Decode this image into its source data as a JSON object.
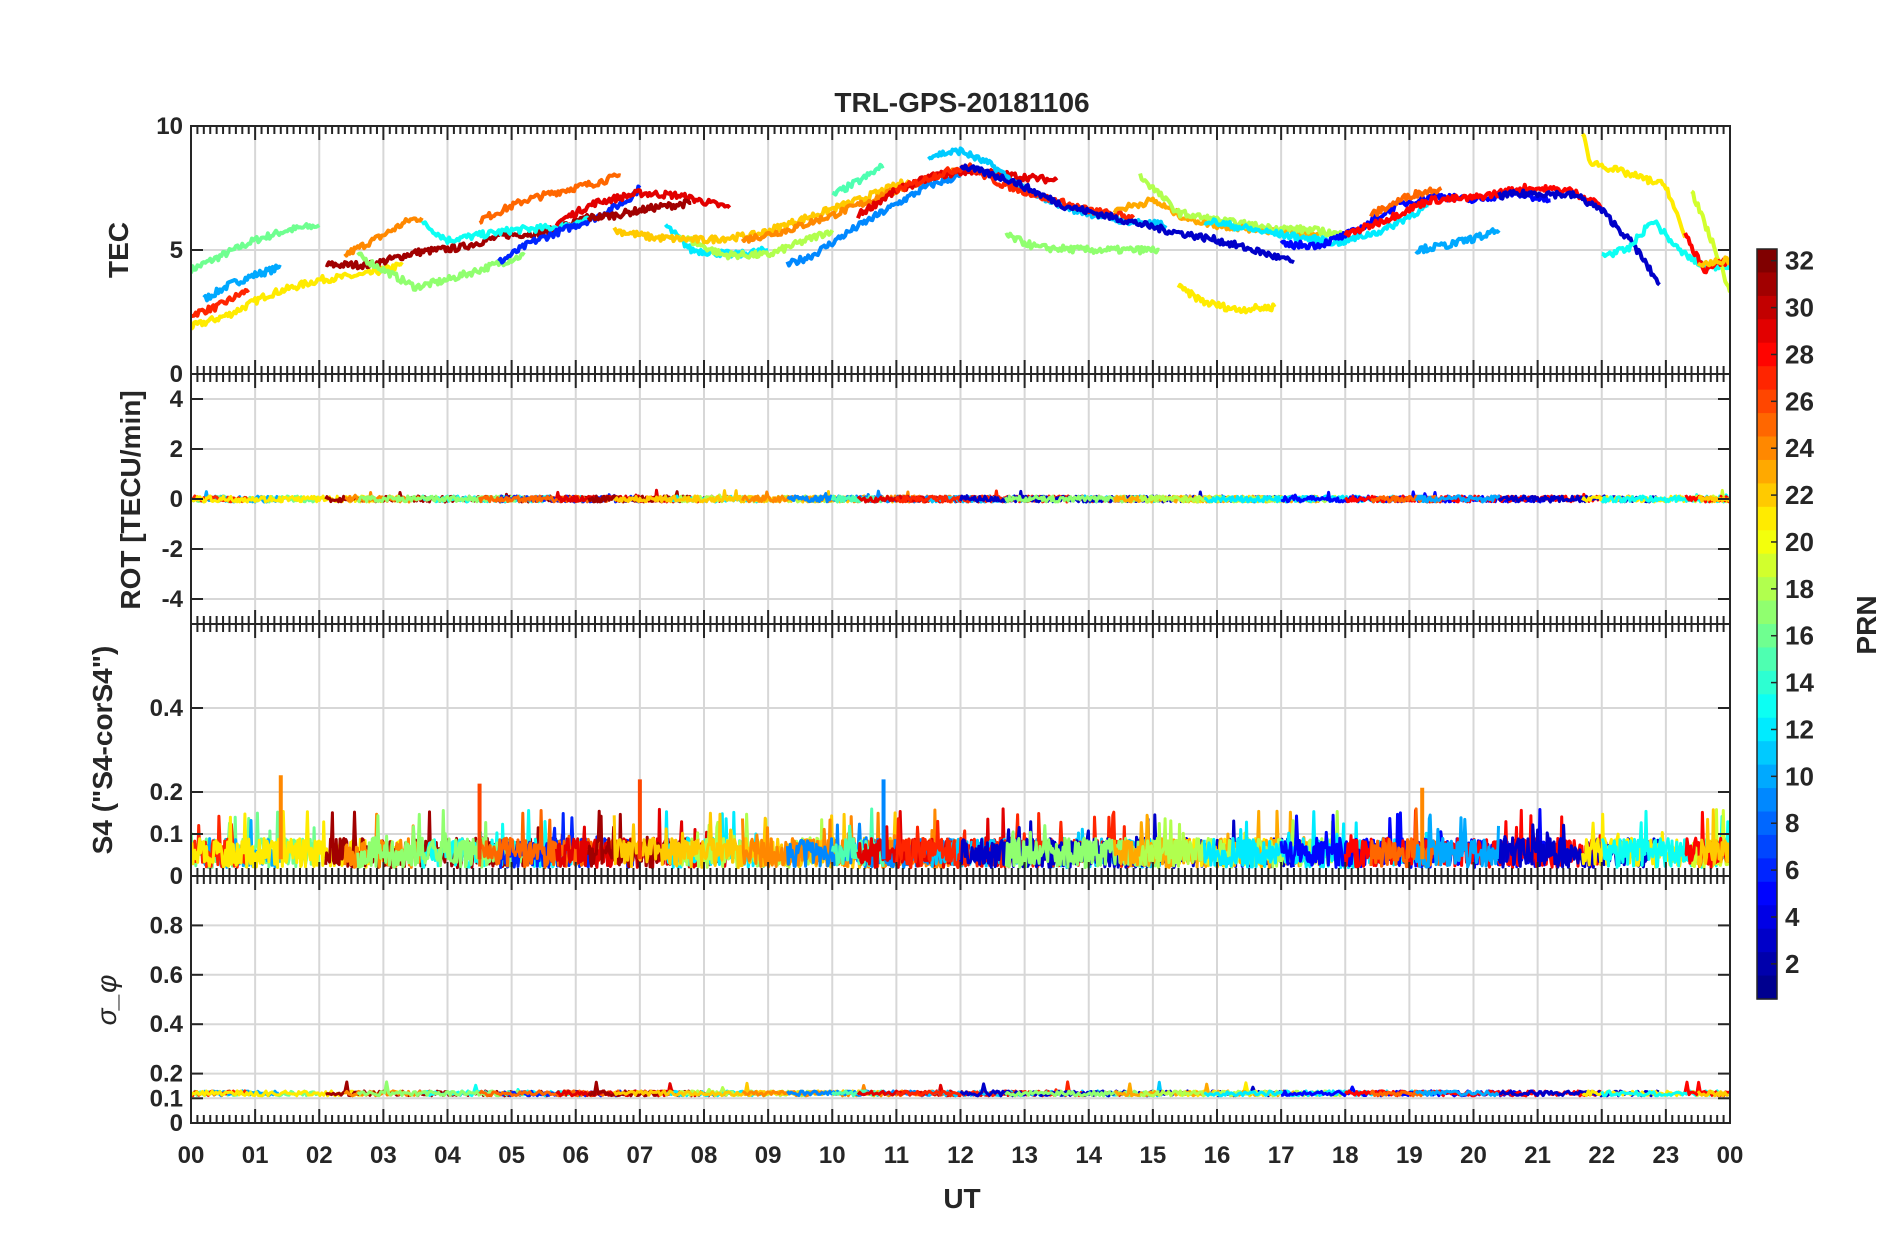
{
  "figure": {
    "title": "TRL-GPS-20181106"
  },
  "colors": {
    "background": "#ffffff",
    "axis": "#262626",
    "grid": "#d7d7d7",
    "jet_colormap": [
      "#00008F",
      "#0000FF",
      "#0080FF",
      "#00FFFF",
      "#80FF80",
      "#FFFF00",
      "#FF8000",
      "#FF0000",
      "#800000"
    ]
  },
  "chart_data": [
    {
      "type": "line",
      "name": "tec-panel",
      "ylabel": "TEC",
      "ylim": [
        0,
        10
      ],
      "yticks": [
        0,
        5,
        10
      ],
      "x_unit": "hours UT",
      "series": [
        {
          "prn": 16,
          "x": [
            0.0,
            0.5,
            1.0,
            1.5,
            2.0
          ],
          "values": [
            4.2,
            4.8,
            5.4,
            5.8,
            6.0
          ]
        },
        {
          "prn": 10,
          "x": [
            0.2,
            0.6,
            1.0,
            1.4
          ],
          "values": [
            3.0,
            3.6,
            4.0,
            4.3
          ]
        },
        {
          "prn": 27,
          "x": [
            0.0,
            0.4,
            0.9
          ],
          "values": [
            2.4,
            2.7,
            3.4
          ]
        },
        {
          "prn": 21,
          "x": [
            0.0,
            0.6,
            1.2,
            2.0,
            2.7,
            3.3
          ],
          "values": [
            1.9,
            2.4,
            3.2,
            3.8,
            4.0,
            4.4
          ]
        },
        {
          "prn": 31,
          "x": [
            2.1,
            2.8,
            3.5,
            4.2,
            4.9,
            5.5,
            6.2
          ],
          "values": [
            4.4,
            4.4,
            4.9,
            5.1,
            5.6,
            5.7,
            6.3
          ]
        },
        {
          "prn": 24,
          "x": [
            2.4,
            3.0,
            3.4,
            3.6
          ],
          "values": [
            4.8,
            5.6,
            6.2,
            6.3
          ]
        },
        {
          "prn": 13,
          "x": [
            3.6,
            4.0,
            4.5,
            5.0,
            5.6,
            6.2
          ],
          "values": [
            6.1,
            5.4,
            5.6,
            5.8,
            5.9,
            6.2
          ]
        },
        {
          "prn": 17,
          "x": [
            2.6,
            3.0,
            3.5,
            4.0,
            4.5,
            5.2
          ],
          "values": [
            4.8,
            4.2,
            3.5,
            3.8,
            4.2,
            4.8
          ]
        },
        {
          "prn": 6,
          "x": [
            4.8,
            5.3,
            5.8,
            6.3,
            6.8,
            7.0
          ],
          "values": [
            4.5,
            5.3,
            5.8,
            6.3,
            7.0,
            7.5
          ]
        },
        {
          "prn": 25,
          "x": [
            4.5,
            5.2,
            5.8,
            6.3,
            6.7
          ],
          "values": [
            6.2,
            7.0,
            7.4,
            7.7,
            8.0
          ]
        },
        {
          "prn": 29,
          "x": [
            5.7,
            6.3,
            7.0,
            7.6,
            8.4
          ],
          "values": [
            6.1,
            6.9,
            7.3,
            7.2,
            6.7
          ]
        },
        {
          "prn": 31,
          "x": [
            6.2,
            6.6,
            7.2,
            7.8
          ],
          "values": [
            6.3,
            6.4,
            6.7,
            6.9
          ]
        },
        {
          "prn": 12,
          "x": [
            7.4,
            7.8,
            8.5,
            9.0
          ],
          "values": [
            6.0,
            5.0,
            4.8,
            5.0
          ]
        },
        {
          "prn": 18,
          "x": [
            7.6,
            8.3,
            9.0,
            9.5,
            10.0
          ],
          "values": [
            5.6,
            4.8,
            4.8,
            5.3,
            5.8
          ]
        },
        {
          "prn": 22,
          "x": [
            6.6,
            7.2,
            8.0,
            8.8,
            9.6,
            10.4,
            11.2
          ],
          "values": [
            5.8,
            5.5,
            5.4,
            5.6,
            6.3,
            7.0,
            7.8
          ]
        },
        {
          "prn": 24,
          "x": [
            8.6,
            9.3,
            10.0,
            10.7,
            11.4,
            12.0
          ],
          "values": [
            5.4,
            5.8,
            6.4,
            7.1,
            7.8,
            8.2
          ]
        },
        {
          "prn": 9,
          "x": [
            9.3,
            9.7,
            10.3,
            10.9,
            11.5,
            12.0
          ],
          "values": [
            4.4,
            4.8,
            5.8,
            6.7,
            7.6,
            8.0
          ]
        },
        {
          "prn": 15,
          "x": [
            10.0,
            10.5,
            10.8
          ],
          "values": [
            7.2,
            7.9,
            8.4
          ]
        },
        {
          "prn": 29,
          "x": [
            10.4,
            11.0,
            11.6,
            12.2,
            12.8,
            13.5
          ],
          "values": [
            6.4,
            7.4,
            8.0,
            8.2,
            8.0,
            7.8
          ]
        },
        {
          "prn": 11,
          "x": [
            11.5,
            12.0,
            12.5,
            13.0,
            13.8,
            14.5,
            15.2
          ],
          "values": [
            8.8,
            9.0,
            8.4,
            7.4,
            6.6,
            6.2,
            6.0
          ]
        },
        {
          "prn": 27,
          "x": [
            11.0,
            11.6,
            12.1,
            12.6,
            13.2,
            14.0,
            14.7
          ],
          "values": [
            7.4,
            8.0,
            8.4,
            7.7,
            7.2,
            6.6,
            6.3
          ]
        },
        {
          "prn": 3,
          "x": [
            12.0,
            12.8,
            13.6,
            14.4,
            15.2,
            16.0,
            16.7,
            17.2
          ],
          "values": [
            8.4,
            7.8,
            6.8,
            6.3,
            5.8,
            5.4,
            4.9,
            4.5
          ]
        },
        {
          "prn": 17,
          "x": [
            12.7,
            13.2,
            14.0,
            14.8,
            15.1
          ],
          "values": [
            5.6,
            5.1,
            5.0,
            5.0,
            5.0
          ]
        },
        {
          "prn": 21,
          "x": [
            15.4,
            15.8,
            16.3,
            16.9
          ],
          "values": [
            3.5,
            2.9,
            2.6,
            2.7
          ]
        },
        {
          "prn": 23,
          "x": [
            14.4,
            15.0,
            15.5,
            16.0,
            16.8,
            17.6
          ],
          "values": [
            6.6,
            7.0,
            6.3,
            6.0,
            5.8,
            5.6
          ]
        },
        {
          "prn": 18,
          "x": [
            14.8,
            15.4,
            16.0,
            16.8,
            17.5,
            18.0
          ],
          "values": [
            8.0,
            6.5,
            6.2,
            5.9,
            5.8,
            5.6
          ]
        },
        {
          "prn": 12,
          "x": [
            15.8,
            16.6,
            17.3,
            17.9,
            18.6,
            19.3
          ],
          "values": [
            6.2,
            5.8,
            5.5,
            5.3,
            5.8,
            6.8
          ]
        },
        {
          "prn": 5,
          "x": [
            17.0,
            17.6,
            18.2,
            18.8,
            19.4,
            20.0,
            20.6,
            21.2
          ],
          "values": [
            5.2,
            5.2,
            5.8,
            6.8,
            7.2,
            7.0,
            7.3,
            7.0
          ]
        },
        {
          "prn": 28,
          "x": [
            18.0,
            18.7,
            19.3,
            20.0,
            20.8,
            21.5,
            22.0
          ],
          "values": [
            5.6,
            6.3,
            7.0,
            7.1,
            7.5,
            7.4,
            6.8
          ]
        },
        {
          "prn": 25,
          "x": [
            18.4,
            19.0,
            19.5
          ],
          "values": [
            6.4,
            7.2,
            7.5
          ]
        },
        {
          "prn": 10,
          "x": [
            19.1,
            19.6,
            20.2,
            20.4
          ],
          "values": [
            5.0,
            5.2,
            5.6,
            5.8
          ]
        },
        {
          "prn": 3,
          "x": [
            20.4,
            21.0,
            21.6,
            22.0,
            22.5,
            22.9
          ],
          "values": [
            7.2,
            7.3,
            7.2,
            6.6,
            5.2,
            3.6
          ]
        },
        {
          "prn": 21,
          "x": [
            21.7,
            21.8,
            22.0,
            22.5,
            23.0,
            23.3
          ],
          "values": [
            9.8,
            8.6,
            8.4,
            8.0,
            7.6,
            5.5
          ]
        },
        {
          "prn": 13,
          "x": [
            22.0,
            22.4,
            22.8,
            23.2,
            23.6,
            24.0
          ],
          "values": [
            4.8,
            5.0,
            6.2,
            5.0,
            4.3,
            4.4
          ]
        },
        {
          "prn": 19,
          "x": [
            23.4,
            23.8,
            24.0
          ],
          "values": [
            7.4,
            4.8,
            3.3
          ]
        },
        {
          "prn": 28,
          "x": [
            23.3,
            23.6,
            24.0
          ],
          "values": [
            5.6,
            4.2,
            4.6
          ]
        },
        {
          "prn": 22,
          "x": [
            23.5,
            24.0
          ],
          "values": [
            4.4,
            4.6
          ]
        }
      ]
    },
    {
      "type": "line",
      "name": "rot-panel",
      "ylabel": "ROT [TECU/min]",
      "ylim": [
        -5,
        5
      ],
      "yticks": [
        -4,
        -2,
        0,
        2,
        4
      ],
      "description_value": "all PRNs near 0 TECU/min"
    },
    {
      "type": "line",
      "name": "s4-panel",
      "ylabel": "S4 (\"S4-corS4\")",
      "ylim": [
        0,
        0.6
      ],
      "yticks": [
        0,
        0.1,
        0.2,
        0.4
      ],
      "peaks": [
        {
          "x": 1.4,
          "value": 0.24,
          "prn": 24
        },
        {
          "x": 4.5,
          "value": 0.22,
          "prn": 26
        },
        {
          "x": 7.0,
          "value": 0.23,
          "prn": 26
        },
        {
          "x": 10.8,
          "value": 0.23,
          "prn": 9
        },
        {
          "x": 19.2,
          "value": 0.21,
          "prn": 24
        }
      ]
    },
    {
      "type": "line",
      "name": "sigma-phi-panel",
      "ylabel": "σ_φ",
      "ylim": [
        0,
        1
      ],
      "yticks": [
        0,
        0.1,
        0.2,
        0.4,
        0.6,
        0.8
      ],
      "baseline_value": 0.12
    }
  ],
  "x_axis": {
    "label": "UT",
    "range": [
      0,
      24
    ],
    "tick_labels": [
      "00",
      "01",
      "02",
      "03",
      "04",
      "05",
      "06",
      "07",
      "08",
      "09",
      "10",
      "11",
      "12",
      "13",
      "14",
      "15",
      "16",
      "17",
      "18",
      "19",
      "20",
      "21",
      "22",
      "23",
      "00"
    ]
  },
  "colorbar": {
    "label": "PRN",
    "range": [
      1,
      32
    ],
    "tick_labels": [
      "32",
      "30",
      "28",
      "26",
      "24",
      "22",
      "20",
      "18",
      "16",
      "14",
      "12",
      "10",
      "8",
      "6",
      "4",
      "2"
    ]
  }
}
